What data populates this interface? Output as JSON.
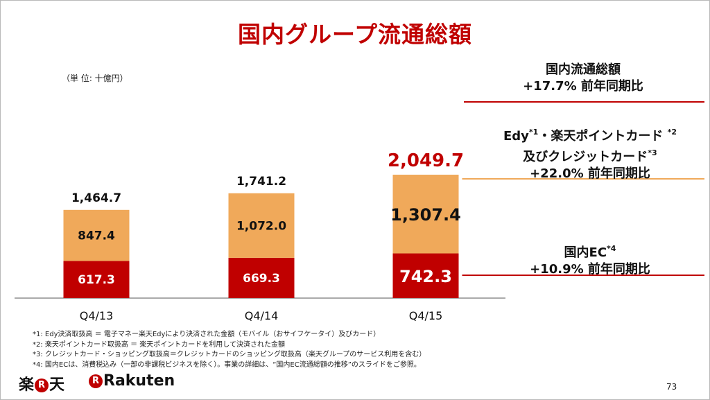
{
  "title": "国内グループ流通総額",
  "unit_label": "（単 位: 十億円）",
  "chart_data": {
    "type": "bar",
    "stacked": true,
    "title": "国内グループ流通総額",
    "categories": [
      "Q4/13",
      "Q4/14",
      "Q4/15"
    ],
    "series": [
      {
        "key": "ec",
        "values": [
          617.3,
          669.3,
          742.3
        ],
        "value_labels": [
          "617.3",
          "669.3",
          "742.3"
        ],
        "color": "#c00000"
      },
      {
        "key": "cards",
        "values": [
          847.4,
          1072.0,
          1307.4
        ],
        "value_labels": [
          "847.4",
          "1,072.0",
          "1,307.4"
        ],
        "color": "#f0a95a"
      }
    ],
    "totals": [
      1464.7,
      1741.2,
      2049.7
    ],
    "total_labels": [
      "1,464.7",
      "1,741.2",
      "2,049.7"
    ],
    "ylim": [
      0,
      2300
    ],
    "grid": false,
    "legend": "none"
  },
  "right_labels": {
    "total": {
      "line1": "国内流通総額",
      "line2": "+17.7% 前年同期比",
      "line_color": "#c00000"
    },
    "cards": {
      "line1_a": "Edy",
      "note1": "*1",
      "line1_b": "・楽天ポイントカード ",
      "note2": "*2",
      "line2_a": "及びクレジットカード",
      "note3": "*3",
      "line3": "+22.0% 前年同期比",
      "line_color": "#f0a95a"
    },
    "ec": {
      "line1_a": "国内EC",
      "note4": "*4",
      "line2": "+10.9% 前年同期比",
      "line_color": "#c00000"
    }
  },
  "footnotes": [
    "*1: Edy決済取扱高 ＝ 電子マネー楽天Edyにより決済された金額（モバイル（おサイフケータイ）及びカード）",
    "*2: 楽天ポイントカード取扱高 ＝ 楽天ポイントカードを利用して決済された金額",
    "*3: クレジットカード・ショッピング取扱高＝クレジットカードのショッピング取扱高（楽天グループのサービス利用を含む）",
    "*4: 国内ECは、消費税込み（一部の非課税ビジネスを除く）。事業の詳細は、“国内EC流通総額の推移”のスライドをご参照。"
  ],
  "logos": {
    "jp_a": "楽",
    "jp_r": "R",
    "jp_b": "天",
    "en_r": "R",
    "en_text": "Rakuten"
  },
  "page_number": "73"
}
